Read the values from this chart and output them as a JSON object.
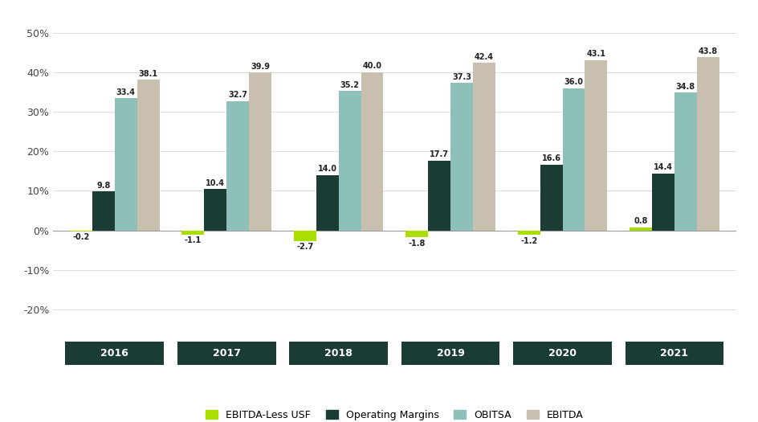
{
  "years": [
    "2016",
    "2017",
    "2018",
    "2019",
    "2020",
    "2021"
  ],
  "ebitda_less_usf": [
    -0.2,
    -1.1,
    -2.7,
    -1.8,
    -1.2,
    0.8
  ],
  "operating_margins": [
    9.8,
    10.4,
    14.0,
    17.7,
    16.6,
    14.4
  ],
  "obitsa": [
    33.4,
    32.7,
    35.2,
    37.3,
    36.0,
    34.8
  ],
  "ebitda": [
    38.1,
    39.9,
    40.0,
    42.4,
    43.1,
    43.8
  ],
  "colors": {
    "ebitda_less_usf": "#aadd00",
    "operating_margins": "#1a3c34",
    "obitsa": "#8ec0ba",
    "ebitda": "#c8bfaf"
  },
  "ylim": [
    -25,
    54
  ],
  "yticks": [
    -20,
    -10,
    0,
    10,
    20,
    30,
    40,
    50
  ],
  "ytick_labels": [
    "-20%",
    "-10%",
    "0%",
    "10%",
    "20%",
    "30%",
    "40%",
    "50%"
  ],
  "background_color": "#ffffff",
  "bar_width": 0.2,
  "legend_labels": [
    "EBITDA-Less USF",
    "Operating Margins",
    "OBITSA",
    "EBITDA"
  ],
  "year_label_bg": "#1a3c34",
  "year_label_color": "#ffffff"
}
